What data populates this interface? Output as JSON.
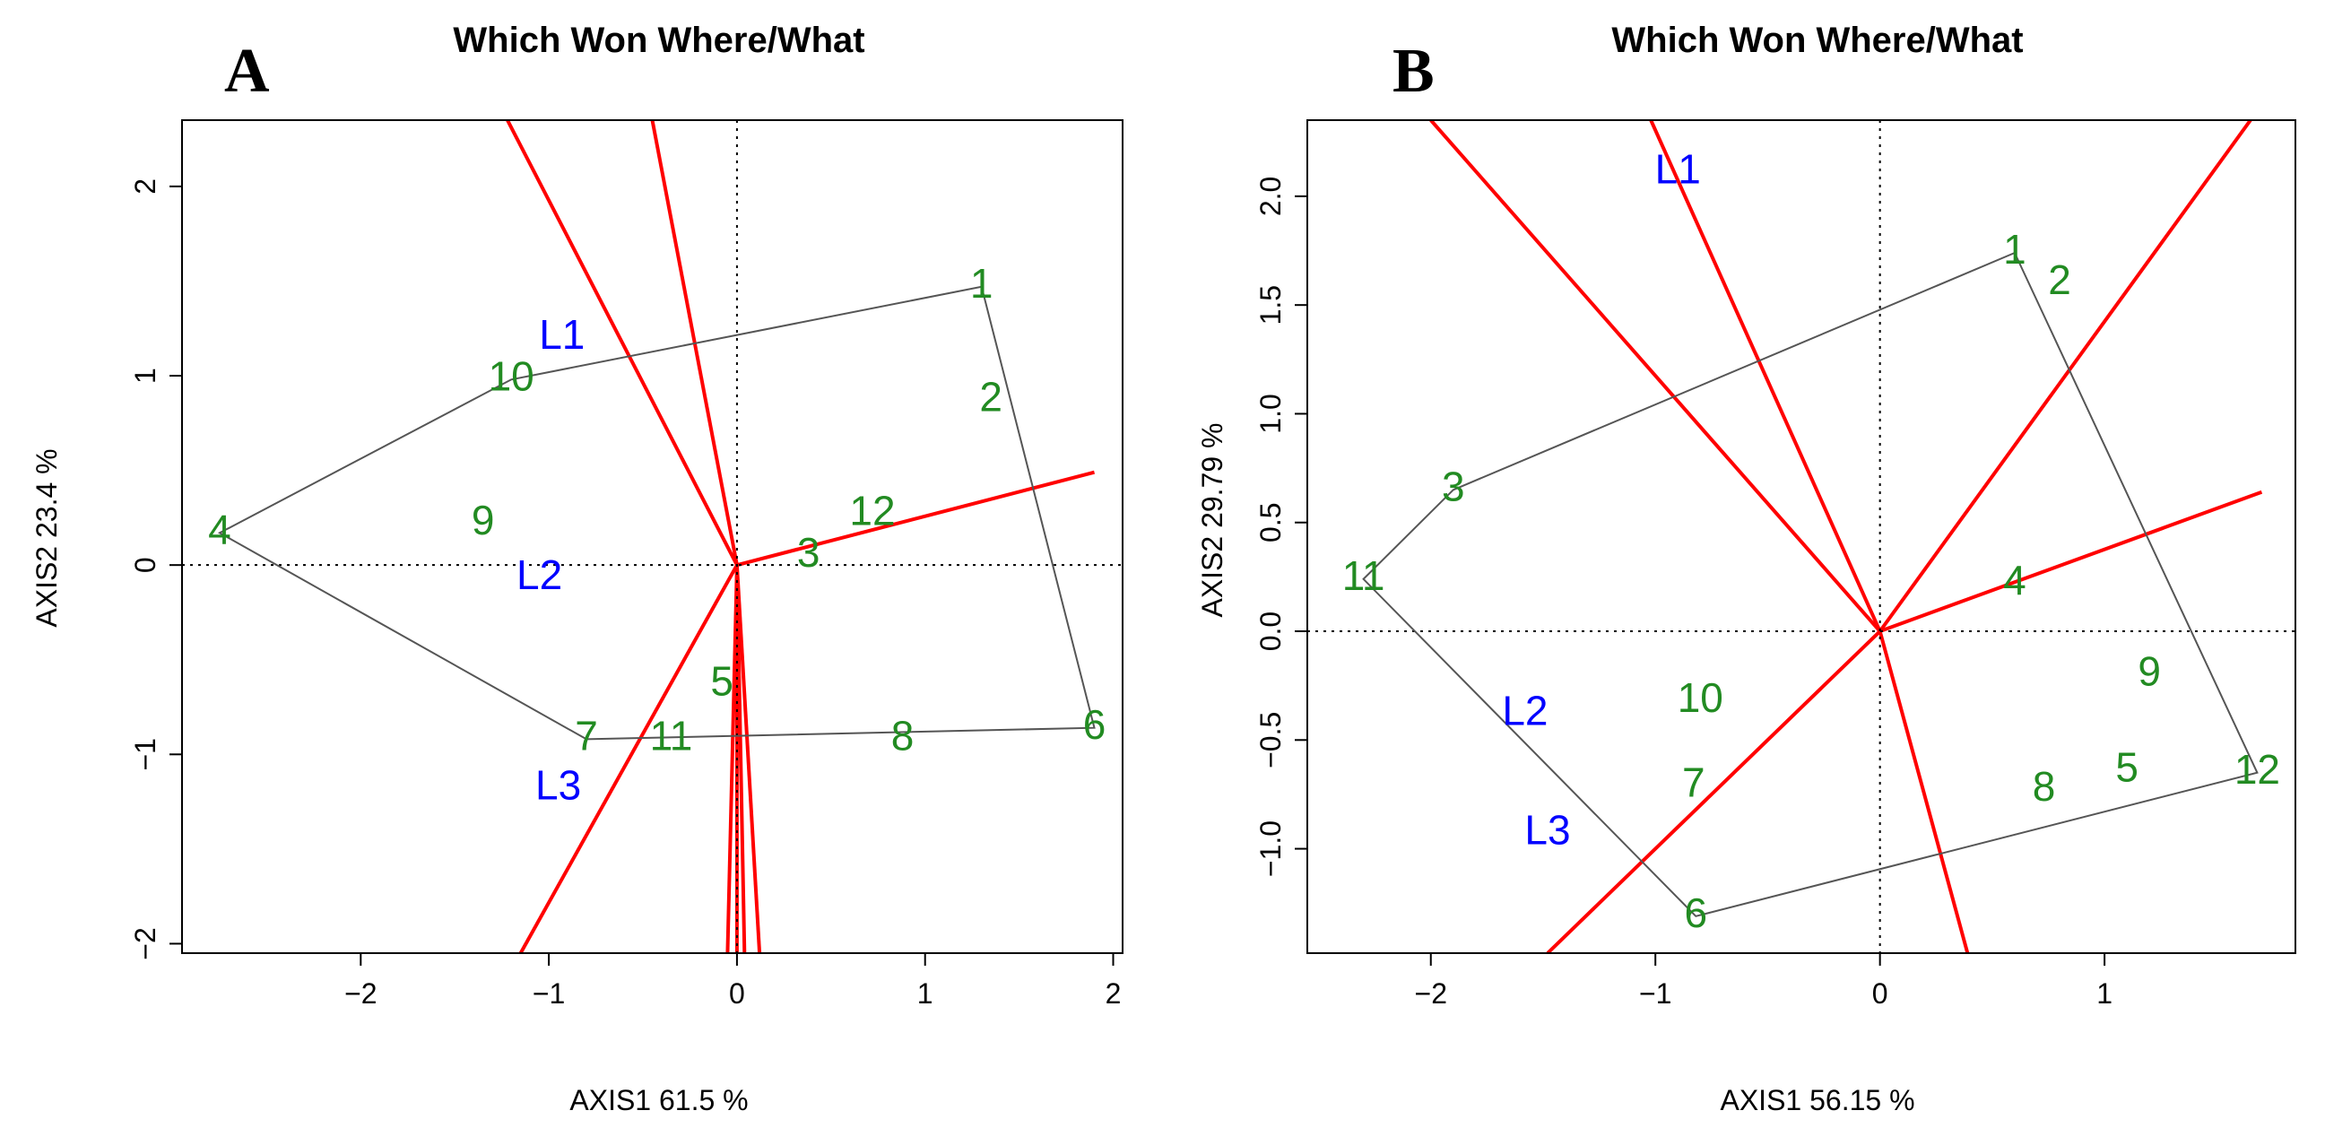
{
  "colors": {
    "genotype": "#228b22",
    "environment": "#0000ff",
    "sector": "#ff0000",
    "hull": "#555555",
    "axis": "#000000"
  },
  "chart_data": [
    {
      "panel": "A",
      "type": "scatter",
      "title": "Which Won Where/What",
      "xlabel": "AXIS1 61.5 %",
      "ylabel": "AXIS2 23.4 %",
      "xlim": [
        -2.95,
        2.05
      ],
      "ylim": [
        -2.05,
        2.35
      ],
      "xticks": [
        -2,
        -1,
        0,
        1,
        2
      ],
      "xtick_labels": [
        "−2",
        "−1",
        "0",
        "1",
        "2"
      ],
      "yticks": [
        -2,
        -1,
        0,
        1,
        2
      ],
      "ytick_labels": [
        "−2",
        "−1",
        "0",
        "1",
        "2"
      ],
      "genotypes": [
        {
          "label": "1",
          "x": 1.3,
          "y": 1.47
        },
        {
          "label": "2",
          "x": 1.35,
          "y": 0.87
        },
        {
          "label": "3",
          "x": 0.38,
          "y": 0.05
        },
        {
          "label": "4",
          "x": -2.75,
          "y": 0.17
        },
        {
          "label": "5",
          "x": -0.08,
          "y": -0.63
        },
        {
          "label": "6",
          "x": 1.9,
          "y": -0.86
        },
        {
          "label": "7",
          "x": -0.8,
          "y": -0.92
        },
        {
          "label": "8",
          "x": 0.88,
          "y": -0.92
        },
        {
          "label": "9",
          "x": -1.35,
          "y": 0.22
        },
        {
          "label": "10",
          "x": -1.2,
          "y": 0.98
        },
        {
          "label": "11",
          "x": -0.35,
          "y": -0.92
        },
        {
          "label": "12",
          "x": 0.72,
          "y": 0.27
        }
      ],
      "environments": [
        {
          "label": "L1",
          "x": -0.93,
          "y": 1.2
        },
        {
          "label": "L2",
          "x": -1.05,
          "y": -0.07
        },
        {
          "label": "L3",
          "x": -0.95,
          "y": -1.18
        }
      ],
      "hull": [
        "1",
        "6",
        "7",
        "4",
        "10"
      ],
      "sector_rays": [
        {
          "x": 1.9,
          "y": 0.49
        },
        {
          "x": -1.22,
          "y": 2.35
        },
        {
          "x": -0.45,
          "y": 2.35
        },
        {
          "x": -1.15,
          "y": -2.05
        },
        {
          "x": -0.05,
          "y": -2.05
        },
        {
          "x": 0.0,
          "y": -2.05
        },
        {
          "x": 0.04,
          "y": -2.05
        },
        {
          "x": 0.12,
          "y": -2.05
        }
      ]
    },
    {
      "panel": "B",
      "type": "scatter",
      "title": "Which Won Where/What",
      "xlabel": "AXIS1 56.15 %",
      "ylabel": "AXIS2 29.79 %",
      "xlim": [
        -2.55,
        1.85
      ],
      "ylim": [
        -1.48,
        2.35
      ],
      "xticks": [
        -2,
        -1,
        0,
        1
      ],
      "xtick_labels": [
        "−2",
        "−1",
        "0",
        "1"
      ],
      "yticks": [
        -1.0,
        -0.5,
        0.0,
        0.5,
        1.0,
        1.5,
        2.0
      ],
      "ytick_labels": [
        "−1.0",
        "−0.5",
        "0.0",
        "0.5",
        "1.0",
        "1.5",
        "2.0"
      ],
      "genotypes": [
        {
          "label": "1",
          "x": 0.6,
          "y": 1.74
        },
        {
          "label": "2",
          "x": 0.8,
          "y": 1.6
        },
        {
          "label": "3",
          "x": -1.9,
          "y": 0.65
        },
        {
          "label": "4",
          "x": 0.6,
          "y": 0.22
        },
        {
          "label": "5",
          "x": 1.1,
          "y": -0.64
        },
        {
          "label": "6",
          "x": -0.82,
          "y": -1.31
        },
        {
          "label": "7",
          "x": -0.83,
          "y": -0.71
        },
        {
          "label": "8",
          "x": 0.73,
          "y": -0.73
        },
        {
          "label": "9",
          "x": 1.2,
          "y": -0.2
        },
        {
          "label": "10",
          "x": -0.8,
          "y": -0.32
        },
        {
          "label": "11",
          "x": -2.3,
          "y": 0.24
        },
        {
          "label": "12",
          "x": 1.68,
          "y": -0.65
        }
      ],
      "environments": [
        {
          "label": "L1",
          "x": -0.9,
          "y": 2.11
        },
        {
          "label": "L2",
          "x": -1.58,
          "y": -0.38
        },
        {
          "label": "L3",
          "x": -1.48,
          "y": -0.93
        }
      ],
      "hull": [
        "1",
        "12",
        "6",
        "11",
        "3"
      ],
      "sector_rays": [
        {
          "x": 1.7,
          "y": 0.64
        },
        {
          "x": 1.65,
          "y": 2.35
        },
        {
          "x": -2.0,
          "y": 2.35
        },
        {
          "x": -1.02,
          "y": 2.35
        },
        {
          "x": -1.48,
          "y": -1.48
        },
        {
          "x": 0.39,
          "y": -1.48
        }
      ]
    }
  ]
}
